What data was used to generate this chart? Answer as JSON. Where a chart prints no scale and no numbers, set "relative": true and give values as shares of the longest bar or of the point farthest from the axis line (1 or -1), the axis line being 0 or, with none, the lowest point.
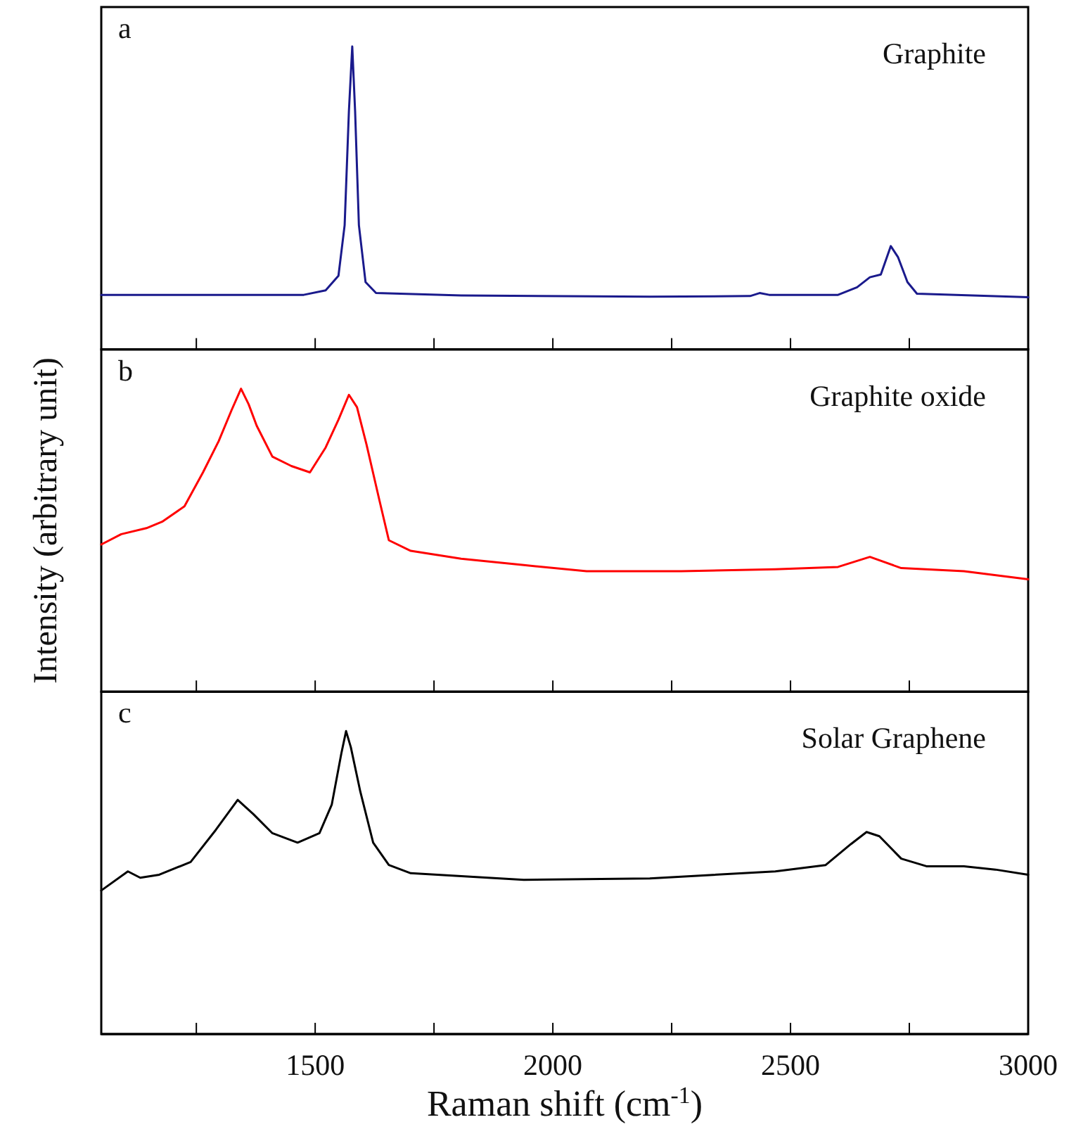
{
  "chart_data": [
    {
      "type": "line",
      "title": "a",
      "relative": true,
      "tick_labels": false,
      "xlim": [
        1050,
        3000
      ],
      "xticks": [
        {
          "value": 1250,
          "label": null
        },
        {
          "value": 1500,
          "label": null
        },
        {
          "value": 1750,
          "label": null
        },
        {
          "value": 2000,
          "label": null
        },
        {
          "value": 2250,
          "label": null
        },
        {
          "value": 2500,
          "label": null
        },
        {
          "value": 2750,
          "label": null
        },
        {
          "value": 3000,
          "label": null
        }
      ],
      "x": [
        1050,
        1476,
        1522,
        1549,
        1562,
        1571,
        1578,
        1584,
        1592,
        1606,
        1628,
        1807,
        2204,
        2415,
        2435,
        2455,
        2600,
        2640,
        2667,
        2690,
        2711,
        2726,
        2746,
        2766,
        3000
      ],
      "series": [
        {
          "name": "Graphite",
          "color": "#1a1a8c",
          "values": [
            0.18,
            0.18,
            0.195,
            0.243,
            0.41,
            0.787,
            1.0,
            0.787,
            0.41,
            0.222,
            0.186,
            0.178,
            0.174,
            0.176,
            0.186,
            0.18,
            0.18,
            0.205,
            0.238,
            0.247,
            0.341,
            0.305,
            0.222,
            0.184,
            0.172
          ]
        }
      ]
    },
    {
      "type": "line",
      "title": "b",
      "ylabel": "Intensity (arbitrary unit)",
      "relative": true,
      "tick_labels": false,
      "xlim": [
        1050,
        3000
      ],
      "xticks": [
        {
          "value": 1250,
          "label": null
        },
        {
          "value": 1500,
          "label": null
        },
        {
          "value": 1750,
          "label": null
        },
        {
          "value": 2000,
          "label": null
        },
        {
          "value": 2250,
          "label": null
        },
        {
          "value": 2500,
          "label": null
        },
        {
          "value": 2750,
          "label": null
        },
        {
          "value": 3000,
          "label": null
        }
      ],
      "x": [
        1050,
        1092,
        1145,
        1178,
        1225,
        1264,
        1297,
        1324,
        1344,
        1360,
        1377,
        1410,
        1450,
        1489,
        1522,
        1549,
        1571,
        1588,
        1608,
        1635,
        1655,
        1701,
        1807,
        1939,
        2071,
        2270,
        2468,
        2600,
        2667,
        2733,
        2865,
        3000
      ],
      "series": [
        {
          "name": "Graphite oxide",
          "color": "#ff0000",
          "values": [
            0.486,
            0.52,
            0.54,
            0.561,
            0.612,
            0.724,
            0.827,
            0.929,
            1.0,
            0.949,
            0.878,
            0.776,
            0.745,
            0.724,
            0.806,
            0.898,
            0.98,
            0.939,
            0.816,
            0.633,
            0.5,
            0.465,
            0.439,
            0.418,
            0.398,
            0.398,
            0.404,
            0.412,
            0.445,
            0.408,
            0.398,
            0.371
          ]
        }
      ]
    },
    {
      "type": "line",
      "title": "c",
      "xlabel": "Raman shift (cm$^{-1}$)",
      "relative": true,
      "tick_labels": "x",
      "xlim": [
        1050,
        3000
      ],
      "xticks": [
        {
          "value": 1250,
          "label": null
        },
        1500,
        {
          "value": 1750,
          "label": null
        },
        2000,
        {
          "value": 2250,
          "label": null
        },
        2500,
        {
          "value": 2750,
          "label": null
        },
        3000
      ],
      "x": [
        1050,
        1106,
        1132,
        1172,
        1238,
        1291,
        1337,
        1370,
        1410,
        1463,
        1509,
        1535,
        1555,
        1565,
        1575,
        1595,
        1622,
        1655,
        1701,
        1939,
        2204,
        2468,
        2574,
        2627,
        2660,
        2687,
        2733,
        2786,
        2865,
        2931,
        3000
      ],
      "series": [
        {
          "name": "Solar Graphene",
          "color": "#000000",
          "values": [
            0.474,
            0.537,
            0.516,
            0.526,
            0.568,
            0.674,
            0.773,
            0.726,
            0.663,
            0.632,
            0.663,
            0.758,
            0.926,
            1.0,
            0.947,
            0.8,
            0.632,
            0.558,
            0.531,
            0.509,
            0.514,
            0.537,
            0.558,
            0.627,
            0.667,
            0.653,
            0.579,
            0.554,
            0.554,
            0.543,
            0.526
          ]
        }
      ]
    }
  ]
}
